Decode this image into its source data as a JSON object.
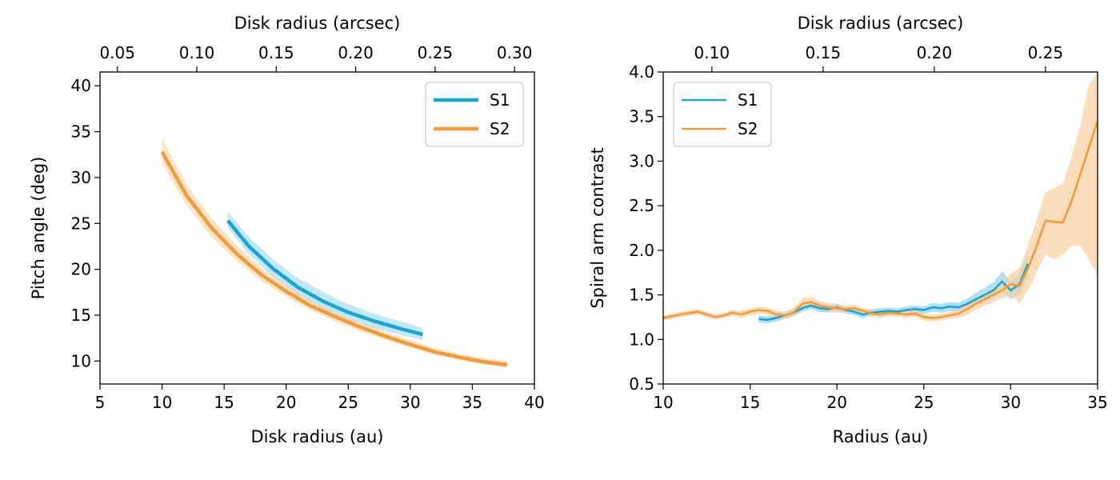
{
  "colors": {
    "s1": "#1aa3d4",
    "s2": "#f29b3a",
    "s1_band": "#8fd3ee",
    "s2_band": "#f8cf9f"
  },
  "chart_data": [
    {
      "type": "line",
      "title": "",
      "xlabel": "Disk radius (au)",
      "ylabel": "Pitch angle (deg)",
      "top_xlabel": "Disk radius (arcsec)",
      "xlim": [
        5,
        40
      ],
      "ylim": [
        7.5,
        41.5
      ],
      "xticks": [
        "5",
        "10",
        "15",
        "20",
        "25",
        "30",
        "35",
        "40"
      ],
      "xtick_values": [
        5,
        10,
        15,
        20,
        25,
        30,
        35,
        40
      ],
      "yticks": [
        "10",
        "15",
        "20",
        "25",
        "30",
        "35",
        "40"
      ],
      "ytick_values": [
        10,
        15,
        20,
        25,
        30,
        35,
        40
      ],
      "top_xticks": [
        "0.05",
        "0.10",
        "0.15",
        "0.20",
        "0.25",
        "0.30"
      ],
      "top_xtick_values": [
        0.05,
        0.1,
        0.15,
        0.2,
        0.25,
        0.3
      ],
      "au_per_arcsec": 128,
      "legend": {
        "location": "upper-right",
        "entries": [
          "S1",
          "S2"
        ]
      },
      "series": [
        {
          "name": "S1",
          "x": [
            15.3,
            17,
            19,
            21,
            23,
            25,
            27,
            29,
            31
          ],
          "y": [
            25.3,
            22.5,
            20.0,
            18.0,
            16.5,
            15.3,
            14.4,
            13.6,
            12.9
          ],
          "band_lower": [
            24.5,
            21.6,
            19.1,
            17.1,
            15.6,
            14.5,
            13.6,
            12.9,
            12.3
          ],
          "band_upper": [
            26.3,
            23.5,
            21.0,
            19.0,
            17.5,
            16.2,
            15.2,
            14.4,
            13.6
          ]
        },
        {
          "name": "S2",
          "x": [
            10,
            12,
            14,
            16,
            18,
            20,
            22,
            24,
            26,
            28,
            30,
            32,
            34,
            36,
            37.8
          ],
          "y": [
            32.8,
            28.0,
            24.5,
            21.7,
            19.4,
            17.6,
            16.0,
            14.8,
            13.7,
            12.7,
            11.8,
            11.0,
            10.4,
            9.9,
            9.6
          ],
          "band_lower": [
            31.5,
            26.9,
            23.5,
            20.9,
            18.7,
            17.0,
            15.5,
            14.3,
            13.2,
            12.3,
            11.4,
            10.7,
            10.1,
            9.6,
            9.3
          ],
          "band_upper": [
            34.3,
            29.2,
            25.6,
            22.6,
            20.2,
            18.3,
            16.6,
            15.3,
            14.2,
            13.2,
            12.3,
            11.4,
            10.8,
            10.3,
            10.0
          ]
        }
      ]
    },
    {
      "type": "line",
      "title": "",
      "xlabel": "Radius (au)",
      "ylabel": "Spiral arm contrast",
      "top_xlabel": "Disk radius (arcsec)",
      "xlim": [
        10,
        35
      ],
      "ylim": [
        0.5,
        4.0
      ],
      "xticks": [
        "10",
        "15",
        "20",
        "25",
        "30",
        "35"
      ],
      "xtick_values": [
        10,
        15,
        20,
        25,
        30,
        35
      ],
      "yticks": [
        "0.5",
        "1.0",
        "1.5",
        "2.0",
        "2.5",
        "3.0",
        "3.5",
        "4.0"
      ],
      "ytick_values": [
        0.5,
        1.0,
        1.5,
        2.0,
        2.5,
        3.0,
        3.5,
        4.0
      ],
      "top_xticks": [
        "0.10",
        "0.15",
        "0.20",
        "0.25"
      ],
      "top_xtick_values": [
        0.1,
        0.15,
        0.2,
        0.25
      ],
      "au_per_arcsec": 128,
      "legend": {
        "location": "upper-left",
        "entries": [
          "S1",
          "S2"
        ]
      },
      "series": [
        {
          "name": "S1",
          "x": [
            15.5,
            16,
            16.5,
            17,
            17.5,
            18,
            18.5,
            19,
            19.5,
            20,
            20.5,
            21,
            21.5,
            22,
            22.5,
            23,
            23.5,
            24,
            24.5,
            25,
            25.5,
            26,
            26.5,
            27,
            27.5,
            28,
            28.5,
            29,
            29.5,
            30,
            30.5,
            31
          ],
          "y": [
            1.23,
            1.22,
            1.24,
            1.27,
            1.3,
            1.35,
            1.38,
            1.35,
            1.34,
            1.36,
            1.33,
            1.31,
            1.28,
            1.3,
            1.31,
            1.32,
            1.31,
            1.33,
            1.34,
            1.33,
            1.36,
            1.35,
            1.37,
            1.36,
            1.4,
            1.45,
            1.5,
            1.55,
            1.65,
            1.55,
            1.62,
            1.85
          ],
          "band_lower": [
            1.19,
            1.18,
            1.2,
            1.23,
            1.26,
            1.31,
            1.34,
            1.31,
            1.3,
            1.32,
            1.29,
            1.27,
            1.24,
            1.26,
            1.27,
            1.28,
            1.27,
            1.29,
            1.3,
            1.29,
            1.31,
            1.3,
            1.32,
            1.31,
            1.34,
            1.38,
            1.42,
            1.46,
            1.54,
            1.45,
            1.5,
            1.7
          ],
          "band_upper": [
            1.27,
            1.26,
            1.28,
            1.31,
            1.34,
            1.39,
            1.42,
            1.39,
            1.38,
            1.4,
            1.37,
            1.35,
            1.32,
            1.34,
            1.35,
            1.36,
            1.35,
            1.37,
            1.38,
            1.37,
            1.41,
            1.4,
            1.42,
            1.41,
            1.46,
            1.52,
            1.58,
            1.64,
            1.76,
            1.65,
            1.74,
            2.0
          ]
        },
        {
          "name": "S2",
          "x": [
            10,
            11,
            12,
            12.5,
            13,
            13.5,
            14,
            14.5,
            15,
            15.5,
            16,
            16.5,
            17,
            17.5,
            18,
            18.5,
            19,
            19.5,
            20,
            20.5,
            21,
            21.5,
            22,
            22.5,
            23,
            23.5,
            24,
            24.5,
            25,
            25.5,
            26,
            26.5,
            27,
            27.5,
            28,
            28.5,
            29,
            29.5,
            30,
            30.5,
            31,
            31.5,
            32,
            32.5,
            33,
            33.5,
            34,
            34.5,
            35
          ],
          "y": [
            1.24,
            1.28,
            1.31,
            1.28,
            1.25,
            1.27,
            1.3,
            1.28,
            1.31,
            1.33,
            1.32,
            1.28,
            1.27,
            1.3,
            1.4,
            1.42,
            1.38,
            1.36,
            1.35,
            1.34,
            1.35,
            1.32,
            1.29,
            1.28,
            1.3,
            1.29,
            1.28,
            1.29,
            1.25,
            1.24,
            1.25,
            1.27,
            1.29,
            1.34,
            1.4,
            1.45,
            1.5,
            1.55,
            1.62,
            1.6,
            1.8,
            2.05,
            2.33,
            2.32,
            2.31,
            2.55,
            2.85,
            3.15,
            3.45
          ],
          "band_lower": [
            1.21,
            1.25,
            1.28,
            1.25,
            1.22,
            1.24,
            1.27,
            1.24,
            1.27,
            1.29,
            1.28,
            1.24,
            1.23,
            1.25,
            1.34,
            1.36,
            1.33,
            1.31,
            1.3,
            1.3,
            1.31,
            1.28,
            1.25,
            1.24,
            1.26,
            1.25,
            1.24,
            1.25,
            1.21,
            1.2,
            1.21,
            1.23,
            1.24,
            1.28,
            1.33,
            1.38,
            1.42,
            1.46,
            1.5,
            1.4,
            1.55,
            1.75,
            1.95,
            1.9,
            1.95,
            2.05,
            2.05,
            1.9,
            1.72
          ],
          "band_upper": [
            1.27,
            1.31,
            1.34,
            1.31,
            1.28,
            1.3,
            1.33,
            1.32,
            1.35,
            1.37,
            1.36,
            1.32,
            1.31,
            1.35,
            1.46,
            1.48,
            1.43,
            1.41,
            1.4,
            1.38,
            1.39,
            1.36,
            1.33,
            1.32,
            1.34,
            1.33,
            1.32,
            1.33,
            1.29,
            1.28,
            1.29,
            1.31,
            1.34,
            1.4,
            1.47,
            1.52,
            1.58,
            1.64,
            1.74,
            1.8,
            2.05,
            2.35,
            2.65,
            2.7,
            2.75,
            3.05,
            3.4,
            3.85,
            4.0
          ]
        }
      ]
    }
  ]
}
